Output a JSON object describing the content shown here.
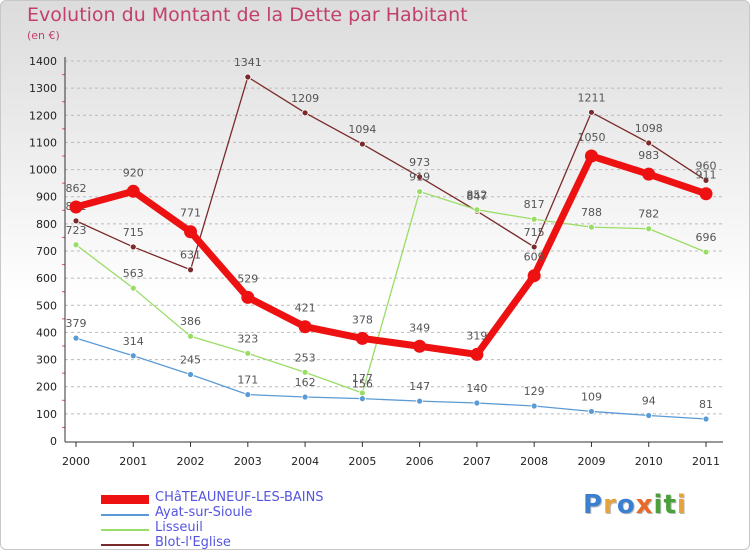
{
  "title": "Evolution du Montant de la Dette par Habitant",
  "unit": "(en €)",
  "logo": {
    "text": "Proxiti",
    "letter_colors": [
      "#3a7fd0",
      "#e8a23a",
      "#3a7fd0",
      "#e86a2a",
      "#4aa03a",
      "#4aa03a",
      "#e8a23a"
    ]
  },
  "colors": {
    "background_top": "#dcdcdc",
    "grid": "#bbbbbb",
    "title": "#c2406b",
    "legend_text": "#5555e0"
  },
  "chart_data": {
    "type": "line",
    "title": "Evolution du Montant de la Dette par Habitant",
    "ylabel": "(en €)",
    "xlabel": "",
    "x": [
      "2000",
      "2001",
      "2002",
      "2003",
      "2004",
      "2005",
      "2006",
      "2007",
      "2008",
      "2009",
      "2010",
      "2011"
    ],
    "ylim": [
      0,
      1400
    ],
    "yticks": [
      0,
      100,
      200,
      300,
      400,
      500,
      600,
      700,
      800,
      900,
      1000,
      1100,
      1200,
      1300,
      1400
    ],
    "grid": "horizontal dashed",
    "legend_position": "bottom-left",
    "series": [
      {
        "name": "Blot-l'Eglise",
        "color": "#7a2a2a",
        "values": [
          811,
          715,
          631,
          1341,
          1209,
          1094,
          973,
          847,
          715,
          1211,
          1098,
          960
        ],
        "segments": [
          [
            0,
            2
          ],
          [
            2,
            11
          ]
        ]
      },
      {
        "name": "Lisseuil",
        "color": "#99dd66",
        "values": [
          723,
          563,
          386,
          323,
          253,
          177,
          919,
          852,
          817,
          788,
          782,
          696
        ],
        "segments": [
          [
            0,
            11
          ]
        ]
      },
      {
        "name": "Ayat-sur-Sioule",
        "color": "#5b9bd5",
        "values": [
          379,
          314,
          245,
          171,
          162,
          156,
          147,
          140,
          129,
          109,
          94,
          81
        ],
        "segments": [
          [
            0,
            11
          ]
        ]
      },
      {
        "name": "CHâTEAUNEUF-LES-BAINS",
        "color": "#ee1111",
        "values": [
          862,
          920,
          771,
          529,
          421,
          378,
          349,
          319,
          609,
          1050,
          983,
          911
        ],
        "segments": [
          [
            0,
            11
          ]
        ]
      }
    ],
    "legend_order": [
      "CHâTEAUNEUF-LES-BAINS",
      "Ayat-sur-Sioule",
      "Lisseuil",
      "Blot-l'Eglise"
    ]
  }
}
